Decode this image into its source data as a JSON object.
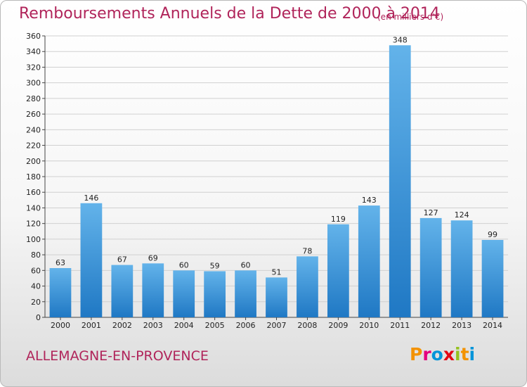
{
  "header": {
    "title": "Remboursements Annuels de la Dette de 2000 à 2014",
    "unit_note": "(en milliers d'€)"
  },
  "footer": {
    "place_name": "ALLEMAGNE-EN-PROVENCE",
    "logo_text": "Proxiti",
    "logo_colors": [
      "#f39200",
      "#e5007e",
      "#0094d9",
      "#e30613",
      "#95c11f",
      "#f39200",
      "#0094d9"
    ]
  },
  "colors": {
    "title": "#b0245a",
    "bar_light": "#63b3ea",
    "bar_dark": "#1f78c4",
    "grid": "#d0d0d0"
  },
  "chart_data": {
    "type": "bar",
    "title": "Remboursements Annuels de la Dette de 2000 à 2014",
    "subtitle": "(en milliers d'€)",
    "xlabel": "",
    "ylabel": "",
    "ylim": [
      0,
      360
    ],
    "yticks": [
      0,
      20,
      40,
      60,
      80,
      100,
      120,
      140,
      160,
      180,
      200,
      220,
      240,
      260,
      280,
      300,
      320,
      340,
      360
    ],
    "grid": true,
    "categories": [
      "2000",
      "2001",
      "2002",
      "2003",
      "2004",
      "2005",
      "2006",
      "2007",
      "2008",
      "2009",
      "2010",
      "2011",
      "2012",
      "2013",
      "2014"
    ],
    "values": [
      63,
      146,
      67,
      69,
      60,
      59,
      60,
      51,
      78,
      119,
      143,
      348,
      127,
      124,
      99
    ]
  }
}
